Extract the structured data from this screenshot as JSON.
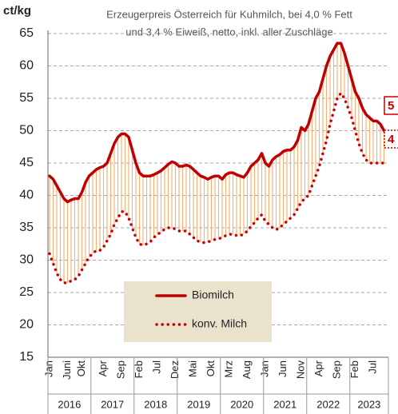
{
  "chart_data": {
    "type": "line",
    "title": "Erzeugerpreis Österreich für Kuhmilch, bei 4,0 % Fett",
    "subtitle": "und 3,4 % Eiweiß, netto, inkl. aller Zuschläge",
    "y_label": "ct/kg",
    "categories": [
      "Jan",
      null,
      null,
      null,
      null,
      "Juni",
      null,
      null,
      null,
      "Okt",
      null,
      null,
      null,
      null,
      null,
      "Apr",
      null,
      null,
      null,
      null,
      "Sep",
      null,
      null,
      null,
      null,
      "Feb",
      null,
      null,
      null,
      null,
      "Jul",
      null,
      null,
      null,
      null,
      "Dez",
      null,
      null,
      null,
      null,
      "Mai",
      null,
      null,
      null,
      null,
      "Okt",
      null,
      null,
      null,
      null,
      "Mrz",
      null,
      null,
      null,
      null,
      "Aug",
      null,
      null,
      null,
      null,
      "Jan",
      null,
      null,
      null,
      null,
      "Jun",
      null,
      null,
      null,
      null,
      "Nov",
      null,
      null,
      null,
      null,
      "Apr",
      null,
      null,
      null,
      null,
      "Sep",
      null,
      null,
      null,
      null,
      "Feb",
      null,
      null,
      null,
      null,
      "Jul",
      null,
      null,
      null
    ],
    "years": [
      "2016",
      "2017",
      "2018",
      "2019",
      "2020",
      "2021",
      "2022",
      "2023"
    ],
    "series": [
      {
        "name": "Biomilch",
        "color": "#c00000",
        "style": "solid",
        "values": [
          43,
          42.5,
          41.5,
          40.5,
          39.5,
          39,
          39.3,
          39.5,
          39.5,
          40.5,
          42,
          43,
          43.5,
          44,
          44.3,
          44.5,
          45,
          46.5,
          48,
          49,
          49.5,
          49.5,
          49,
          47,
          45,
          43.5,
          43,
          43,
          43,
          43.2,
          43.5,
          43.8,
          44.3,
          44.8,
          45.2,
          45,
          44.5,
          44.5,
          44.7,
          44.5,
          44,
          43.5,
          43,
          42.8,
          42.5,
          42.8,
          43,
          43,
          42.5,
          43.2,
          43.5,
          43.5,
          43.2,
          43,
          42.8,
          43.5,
          44.5,
          45,
          45.5,
          46.5,
          45,
          44.5,
          45.5,
          46,
          46.3,
          46.8,
          47,
          47,
          47.5,
          48.5,
          50.5,
          50,
          51,
          53,
          55,
          56,
          58,
          60,
          61.5,
          62.5,
          63.5,
          63.5,
          62,
          60,
          58,
          56,
          55,
          53.5,
          52.5,
          52,
          51.5,
          51.5,
          51,
          50
        ]
      },
      {
        "name": "konv. Milch",
        "color": "#cc0000",
        "style": "dotted",
        "values": [
          31,
          29.5,
          28,
          27,
          26.5,
          26.5,
          26.8,
          27,
          27.5,
          28.5,
          29.5,
          30.5,
          31,
          31.5,
          31.5,
          32,
          33,
          34,
          35.5,
          36.5,
          37.5,
          37.5,
          36.5,
          35,
          33.5,
          32.5,
          32.3,
          32.5,
          32.8,
          33.5,
          34,
          34.3,
          34.8,
          35,
          35,
          34.8,
          34.5,
          34.5,
          34.5,
          34,
          33.5,
          33,
          32.8,
          32.7,
          32.8,
          33,
          33.2,
          33.3,
          33.5,
          33.8,
          34,
          34,
          33.8,
          33.8,
          34,
          34.5,
          35.2,
          35.8,
          36.5,
          37,
          36,
          35.5,
          35,
          34.7,
          35,
          35.5,
          36,
          36.5,
          37,
          38,
          39,
          39.5,
          40,
          41.5,
          43,
          44.5,
          46.5,
          48.5,
          51,
          53,
          55,
          55.8,
          55,
          53.5,
          52,
          50,
          48,
          46.5,
          45.5,
          45,
          45,
          45,
          45,
          45
        ]
      }
    ],
    "range_color": "#f5b27a",
    "end_labels": [
      "5",
      "4"
    ],
    "ylim": [
      15,
      65
    ],
    "yticks": [
      15,
      20,
      25,
      30,
      35,
      40,
      45,
      50,
      55,
      60,
      65
    ],
    "grid": true
  }
}
